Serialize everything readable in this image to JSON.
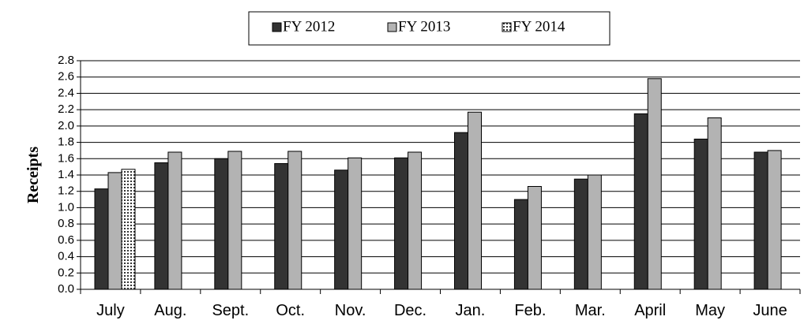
{
  "chart_data": {
    "type": "bar",
    "y_label": "Receipts",
    "categories": [
      "July",
      "Aug.",
      "Sept.",
      "Oct.",
      "Nov.",
      "Dec.",
      "Jan.",
      "Feb.",
      "Mar.",
      "April",
      "May",
      "June"
    ],
    "series": [
      {
        "name": "FY 2012",
        "color": "#333333",
        "values": [
          1.23,
          1.55,
          1.6,
          1.54,
          1.46,
          1.61,
          1.92,
          1.1,
          1.35,
          2.15,
          1.84,
          1.68
        ]
      },
      {
        "name": "FY 2013",
        "color": "#b3b3b3",
        "values": [
          1.43,
          1.68,
          1.69,
          1.69,
          1.61,
          1.68,
          2.17,
          1.26,
          1.4,
          2.58,
          2.1,
          1.7
        ]
      },
      {
        "name": "FY 2014",
        "color": "#ffffff",
        "pattern": "dots",
        "values": [
          1.47,
          null,
          null,
          null,
          null,
          null,
          null,
          null,
          null,
          null,
          null,
          null
        ]
      }
    ],
    "ylim": [
      0,
      2.8
    ],
    "yticks": [
      {
        "value": 0,
        "label": "0.0"
      },
      0.2,
      0.4,
      0.6,
      0.8,
      {
        "value": 1,
        "label": "1.0"
      },
      1.2,
      1.4,
      1.6,
      1.8,
      {
        "value": 2,
        "label": "2.0"
      },
      2.2,
      2.4,
      2.6,
      2.8
    ],
    "grid": true,
    "legend": "top"
  }
}
